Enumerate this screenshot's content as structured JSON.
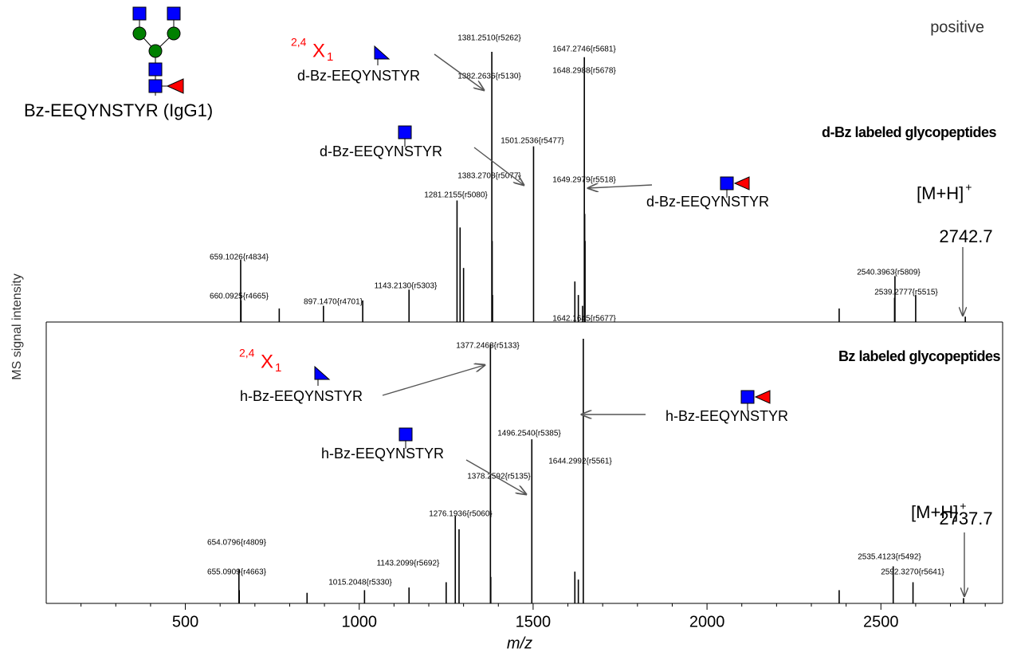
{
  "chart_data": {
    "type": "spectrum",
    "x_label": "m/z",
    "y_label": "MS signal intensity",
    "xlim": [
      100,
      2850
    ],
    "xticks": [
      500,
      1000,
      1500,
      2000,
      2500
    ],
    "xminorticks": [
      200,
      300,
      400,
      600,
      700,
      800,
      900,
      1100,
      1200,
      1300,
      1400,
      1600,
      1700,
      1800,
      1900,
      2100,
      2200,
      2300,
      2400,
      2600,
      2700,
      2800
    ],
    "top_note": "positive",
    "glycopeptide": "Bz-EEQYNSTYR (IgG1)",
    "panels": [
      {
        "title": "d-Bz labeled glycopeptides",
        "ylim": [
          0,
          100
        ],
        "color": "#000000",
        "x": [
          659.1026,
          660.0925,
          897.147,
          1143.213,
          1281.2155,
          1381.251,
          1382.2636,
          1383.2708,
          1501.2536,
          1647.2746,
          1648.2988,
          1649.2979,
          1642.1645,
          2539.2777,
          2540.3963,
          1290,
          1300,
          1010,
          770,
          1620,
          1630,
          2380,
          2600,
          2742.7
        ],
        "values": [
          23,
          8,
          6,
          12,
          45,
          100,
          30,
          10,
          65,
          98,
          40,
          30,
          6,
          9,
          17,
          35,
          20,
          8,
          5,
          15,
          10,
          5,
          10,
          2
        ],
        "peak_labels": [
          "659.1026{r4834}",
          "660.0925{r4665}",
          "897.1470{r4701}",
          "1143.2130{r5303}",
          "1281.2155{r5080}",
          "1381.2510{r5262}",
          "1382.2636{r5130}",
          "1383.2708{r5077}",
          "1501.2536{r5477}",
          "1647.2746{r5681}",
          "1648.2988{r5678}",
          "1649.2979{r5518}",
          "1642.1645{r5677}",
          "2539.2777{r5515}",
          "2540.3963{r5809}",
          null,
          null,
          null,
          null,
          null,
          null,
          null,
          null,
          null
        ],
        "cross_ring": {
          "sup": "2,4",
          "base": "X",
          "sub": "1"
        },
        "fragments": [
          "d-Bz-EEQYNSTYR",
          "d-Bz-EEQYNSTYR",
          "d-Bz-EEQYNSTYR"
        ],
        "precursor": {
          "ion": "[M+H]",
          "charge": "+",
          "mz": "2742.7"
        }
      },
      {
        "title": "Bz labeled glycopeptides",
        "ylim": [
          0,
          100
        ],
        "color": "#000000",
        "x": [
          654.0796,
          655.0909,
          1015.2048,
          1143.2099,
          1276.1936,
          1377.2463,
          1378.2592,
          1496.254,
          1644.2992,
          2535.4123,
          2592.327,
          1287,
          1250,
          850,
          1620,
          1630,
          2380,
          2737.7
        ],
        "values": [
          13,
          5,
          5,
          6,
          33,
          98,
          10,
          62,
          100,
          14,
          8,
          28,
          8,
          4,
          12,
          9,
          5,
          2
        ],
        "peak_labels": [
          "654.0796{r4809}",
          "655.0909{r4663}",
          "1015.2048{r5330}",
          "1143.2099{r5692}",
          "1276.1936{r5060}",
          "1377.2463{r5133}",
          "1378.2592{r5135}",
          "1496.2540{r5385}",
          "1644.2992{r5561}",
          "2535.4123{r5492}",
          "2592.3270{r5641}",
          null,
          null,
          null,
          null,
          null,
          null,
          null
        ],
        "cross_ring": {
          "sup": "2,4",
          "base": "X",
          "sub": "1"
        },
        "fragments": [
          "h-Bz-EEQYNSTYR",
          "h-Bz-EEQYNSTYR",
          "h-Bz-EEQYNSTYR"
        ],
        "precursor": {
          "ion": "[M+H]",
          "charge": "+",
          "mz": "2737.7"
        }
      }
    ]
  }
}
